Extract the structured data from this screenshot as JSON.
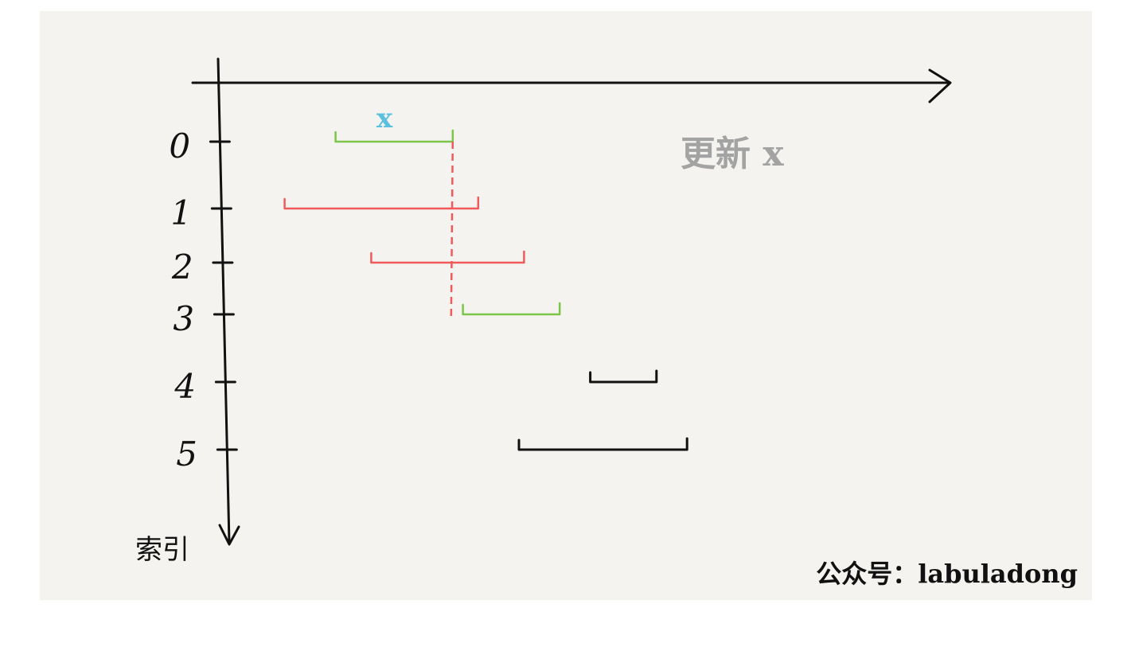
{
  "caption": "更新 x",
  "current_label": "x",
  "axis_label": "索引",
  "watermark": "公众号：labuladong",
  "colors": {
    "paper": "#f4f3ef",
    "ink": "#111111",
    "merged": "#7cc44a",
    "overlap": "#f05a5a",
    "current": "#5bc0e0",
    "caption": "#a3a3a3"
  },
  "intervals": [
    {
      "index": "0",
      "start": 1.9,
      "end": 4.2,
      "state": "merged"
    },
    {
      "index": "1",
      "start": 0.9,
      "end": 4.7,
      "state": "overlap"
    },
    {
      "index": "2",
      "start": 2.6,
      "end": 5.6,
      "state": "overlap"
    },
    {
      "index": "3",
      "start": 4.4,
      "end": 6.3,
      "state": "merged"
    },
    {
      "index": "4",
      "start": 6.9,
      "end": 8.2,
      "state": "pending"
    },
    {
      "index": "5",
      "start": 5.5,
      "end": 8.8,
      "state": "pending"
    }
  ],
  "sweep_at": 4.2
}
